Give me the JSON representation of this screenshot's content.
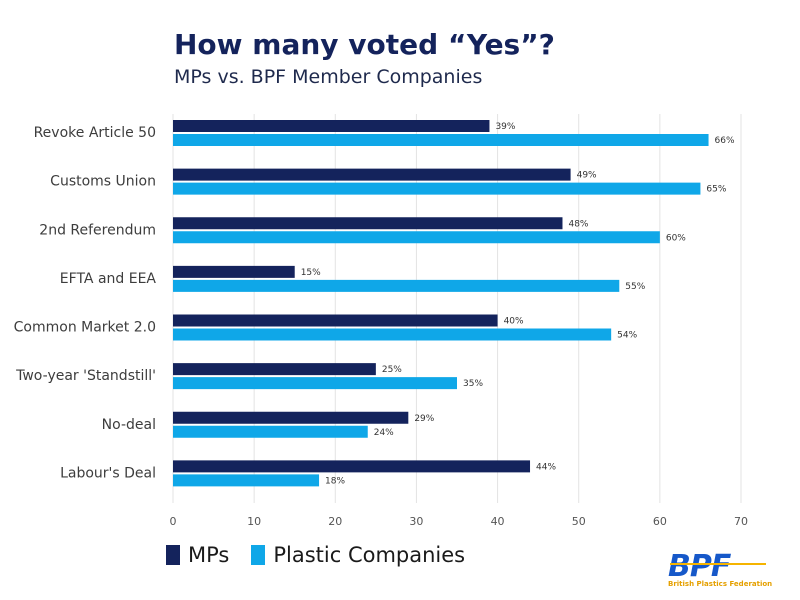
{
  "header": {
    "title": "How many voted “Yes”?",
    "subtitle": "MPs vs. BPF Member Companies"
  },
  "legend": {
    "items": [
      {
        "label": "MPs",
        "color": "#14235c"
      },
      {
        "label": "Plastic Companies",
        "color": "#0fa7e8"
      }
    ]
  },
  "logo": {
    "text": "BPF",
    "subtext": "British Plastics Federation",
    "color": "#1658c9",
    "accent": "#f5b400"
  },
  "chart_data": {
    "type": "bar",
    "orientation": "horizontal",
    "categories": [
      "Revoke Article 50",
      "Customs Union",
      "2nd Referendum",
      "EFTA and EEA",
      "Common Market 2.0",
      "Two-year 'Standstill'",
      "No-deal",
      "Labour's Deal"
    ],
    "series": [
      {
        "name": "MPs",
        "color": "#14235c",
        "values": [
          39,
          49,
          48,
          15,
          40,
          25,
          29,
          44
        ],
        "value_labels": [
          "39%",
          "49%",
          "48%",
          "15%",
          "40%",
          "25%",
          "29%",
          "44%"
        ]
      },
      {
        "name": "Plastic Companies",
        "color": "#0fa7e8",
        "values": [
          66,
          65,
          60,
          55,
          54,
          35,
          24,
          18
        ],
        "value_labels": [
          "66%",
          "65%",
          "60%",
          "55%",
          "54%",
          "35%",
          "24%",
          "18%"
        ]
      }
    ],
    "xlim": [
      0,
      70
    ],
    "xticks": [
      0,
      10,
      20,
      30,
      40,
      50,
      60,
      70
    ],
    "grid": true,
    "legend_position": "bottom-left"
  }
}
